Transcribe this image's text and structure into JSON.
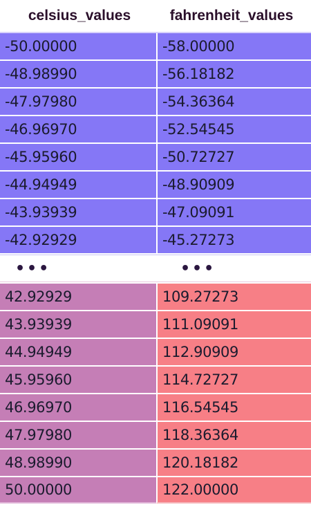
{
  "chart_data": {
    "type": "table",
    "columns": [
      "celsius_values",
      "fahrenheit_values"
    ],
    "top_rows": [
      [
        "-50.00000",
        "-58.00000"
      ],
      [
        "-48.98990",
        "-56.18182"
      ],
      [
        "-47.97980",
        "-54.36364"
      ],
      [
        "-46.96970",
        "-52.54545"
      ],
      [
        "-45.95960",
        "-50.72727"
      ],
      [
        "-44.94949",
        "-48.90909"
      ],
      [
        "-43.93939",
        "-47.09091"
      ],
      [
        "-42.92929",
        "-45.27273"
      ]
    ],
    "ellipsis": [
      "•••",
      "•••"
    ],
    "bottom_rows": [
      [
        "42.92929",
        "109.27273"
      ],
      [
        "43.93939",
        "111.09091"
      ],
      [
        "44.94949",
        "112.90909"
      ],
      [
        "45.95960",
        "114.72727"
      ],
      [
        "46.96970",
        "116.54545"
      ],
      [
        "47.97980",
        "118.36364"
      ],
      [
        "48.98990",
        "120.18182"
      ],
      [
        "50.00000",
        "122.00000"
      ]
    ],
    "colors": {
      "top_rows": "#8577f6",
      "bottom_celsius": "#c57eb6",
      "bottom_fahrenheit": "#f77f86",
      "header_text": "#2a0f2a"
    }
  }
}
